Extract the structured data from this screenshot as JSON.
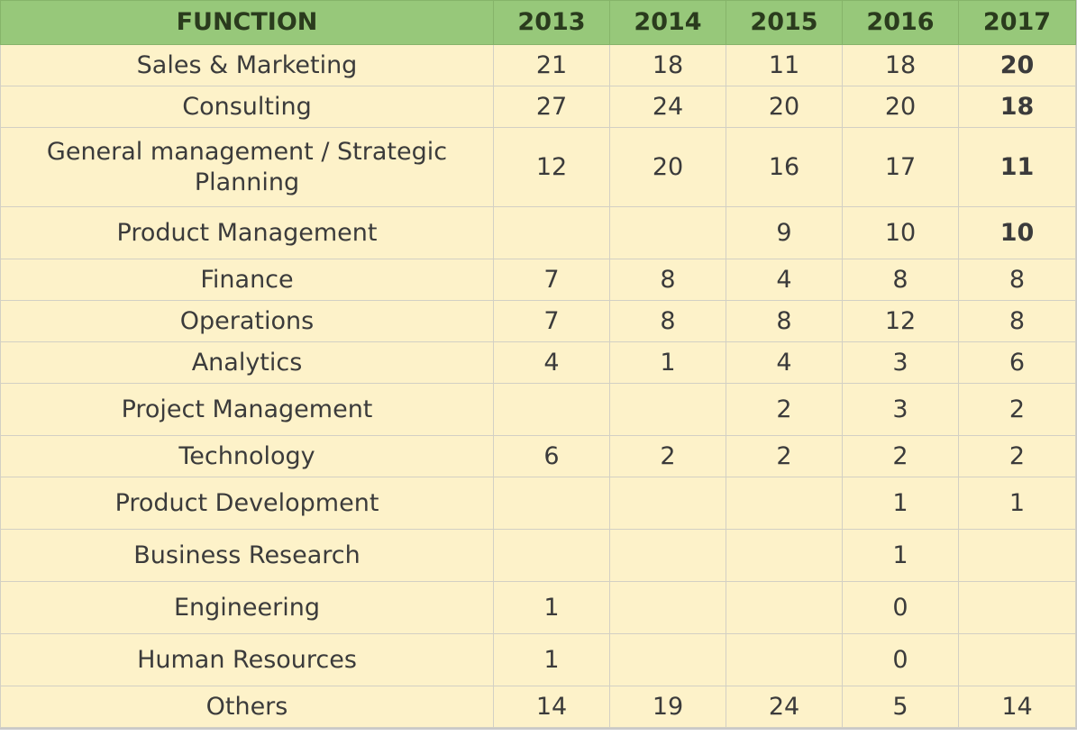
{
  "chart_data": {
    "type": "table",
    "columns": [
      "FUNCTION",
      "2013",
      "2014",
      "2015",
      "2016",
      "2017"
    ],
    "rows": [
      {
        "function": "Sales & Marketing",
        "values": [
          "21",
          "18",
          "11",
          "18",
          "20"
        ]
      },
      {
        "function": "Consulting",
        "values": [
          "27",
          "24",
          "20",
          "20",
          "18"
        ]
      },
      {
        "function": "General management / Strategic Planning",
        "values": [
          "12",
          "20",
          "16",
          "17",
          "11"
        ]
      },
      {
        "function": "Product Management",
        "values": [
          "",
          "",
          "9",
          "10",
          "10"
        ]
      },
      {
        "function": "Finance",
        "values": [
          "7",
          "8",
          "4",
          "8",
          "8"
        ]
      },
      {
        "function": "Operations",
        "values": [
          "7",
          "8",
          "8",
          "12",
          "8"
        ]
      },
      {
        "function": "Analytics",
        "values": [
          "4",
          "1",
          "4",
          "3",
          "6"
        ]
      },
      {
        "function": "Project Management",
        "values": [
          "",
          "",
          "2",
          "3",
          "2"
        ]
      },
      {
        "function": "Technology",
        "values": [
          "6",
          "2",
          "2",
          "2",
          "2"
        ]
      },
      {
        "function": "Product Development",
        "values": [
          "",
          "",
          "",
          "1",
          "1"
        ]
      },
      {
        "function": "Business Research",
        "values": [
          "",
          "",
          "",
          "1",
          ""
        ]
      },
      {
        "function": "Engineering",
        "values": [
          "1",
          "",
          "",
          "0",
          ""
        ]
      },
      {
        "function": "Human Resources",
        "values": [
          "1",
          "",
          "",
          "0",
          ""
        ]
      },
      {
        "function": "Others",
        "values": [
          "14",
          "19",
          "24",
          "5",
          "14"
        ]
      }
    ],
    "bold_2017_rows": [
      0,
      1,
      2,
      3
    ]
  },
  "colors": {
    "header_bg": "#97c87a",
    "body_bg": "#fdf2c9",
    "grid": "#d3d0c4",
    "text": "#3b3b3b"
  }
}
